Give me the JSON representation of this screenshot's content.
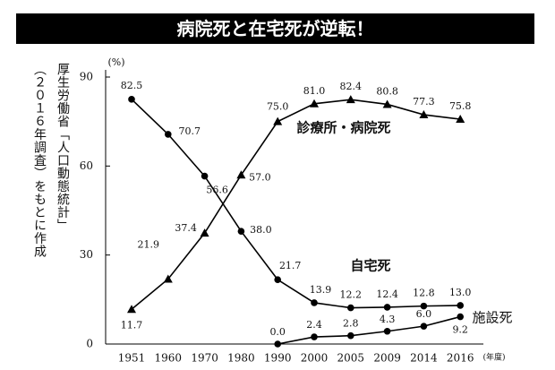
{
  "chart_data": {
    "type": "line",
    "title": "病院死と在宅死が逆転！",
    "source_lines": [
      "厚生労働省「人口動態統計」",
      "（２０１６年調査）をもとに作成"
    ],
    "y_label": "(%)",
    "x_label": "(年度)",
    "categories": [
      "1951",
      "1960",
      "1970",
      "1980",
      "1990",
      "2000",
      "2005",
      "2009",
      "2014",
      "2016"
    ],
    "ylim": [
      0,
      90
    ],
    "yticks": [
      0,
      30,
      60,
      90
    ],
    "series": [
      {
        "name": "自宅死",
        "color": "#000000",
        "marker": "circle",
        "values": [
          82.5,
          70.7,
          56.6,
          38.0,
          21.7,
          13.9,
          12.2,
          12.4,
          12.8,
          13.0
        ],
        "value_labels": [
          "82.5",
          "70.7",
          "56.6",
          "38.0",
          "21.7",
          "13.9",
          "12.2",
          "12.4",
          "12.8",
          "13.0"
        ]
      },
      {
        "name": "診療所・病院死",
        "color": "#000000",
        "marker": "triangle",
        "values": [
          11.7,
          21.9,
          37.4,
          57.0,
          75.0,
          81.0,
          82.4,
          80.8,
          77.3,
          75.8
        ],
        "value_labels": [
          "11.7",
          "21.9",
          "37.4",
          "57.0",
          "75.0",
          "81.0",
          "82.4",
          "80.8",
          "77.3",
          "75.8"
        ]
      },
      {
        "name": "施設死",
        "color": "#000000",
        "marker": "circle",
        "values": [
          null,
          null,
          null,
          null,
          0.0,
          2.4,
          2.8,
          4.3,
          6.0,
          9.2
        ],
        "value_labels": [
          null,
          null,
          null,
          null,
          "0.0",
          "2.4",
          "2.8",
          "4.3",
          "6.0",
          "9.2"
        ]
      }
    ]
  }
}
